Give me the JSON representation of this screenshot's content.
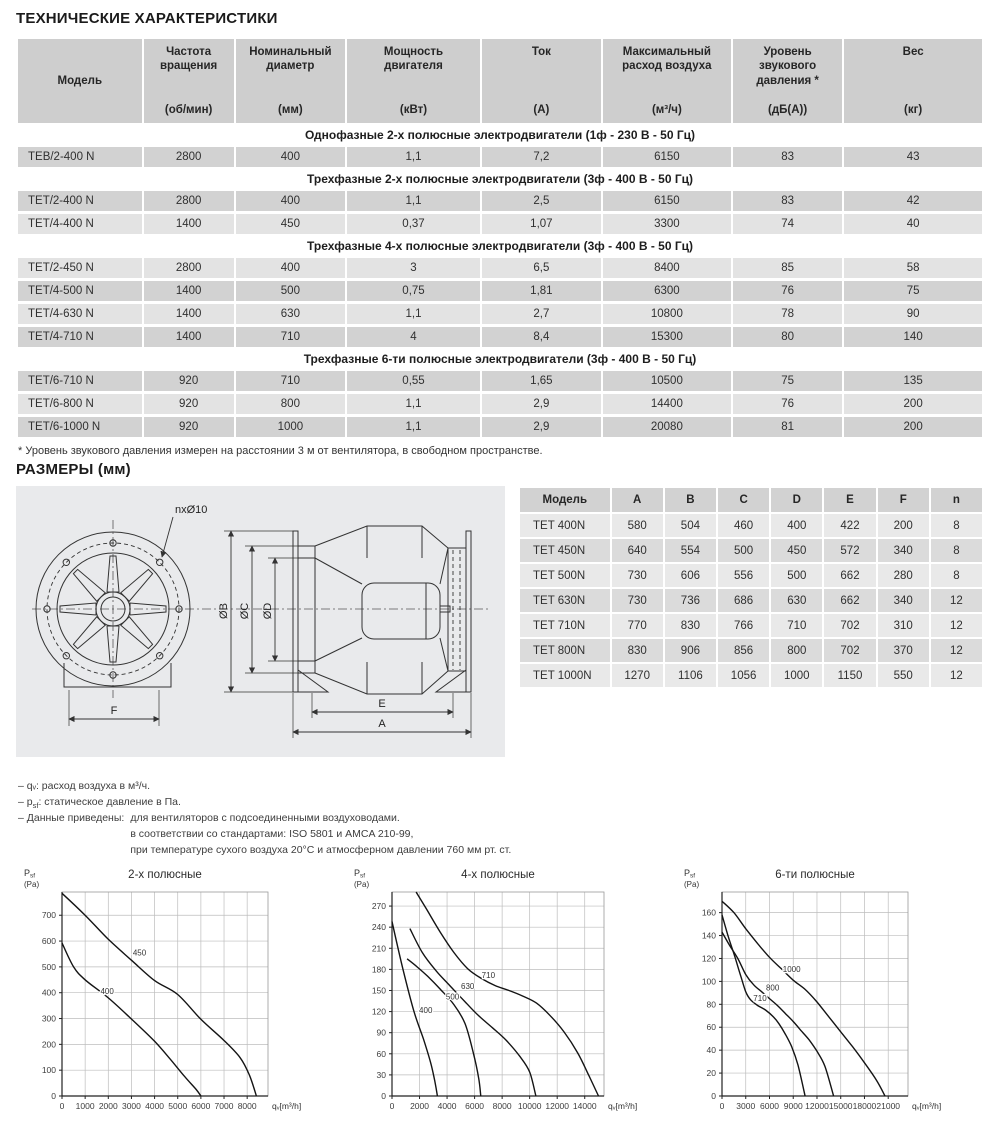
{
  "page": {
    "title": "ТЕХНИЧЕСКИЕ ХАРАКТЕРИСТИКИ",
    "dimensions_title": "РАЗМЕРЫ (мм)"
  },
  "spec_table": {
    "headers": [
      {
        "name": "Модель",
        "unit": ""
      },
      {
        "name": "Частота вращения",
        "unit": "(об/мин)"
      },
      {
        "name": "Номинальный диаметр",
        "unit": "(мм)"
      },
      {
        "name": "Мощность двигателя",
        "unit": "(кВт)"
      },
      {
        "name": "Ток",
        "unit": "(А)"
      },
      {
        "name": "Максимальный расход воздуха",
        "unit": "(м³/ч)"
      },
      {
        "name": "Уровень звукового давления *",
        "unit": "(дБ(А))"
      },
      {
        "name": "Вес",
        "unit": "(кг)"
      }
    ],
    "sections": [
      {
        "title": "Однофазные 2-х полюсные электродвигатели (1ф - 230 В - 50 Гц)",
        "rows": [
          {
            "model": "TEB/2-400 N",
            "values": [
              "2800",
              "400",
              "1,1",
              "7,2",
              "6150",
              "83",
              "43"
            ],
            "shade": "dark"
          }
        ]
      },
      {
        "title": "Трехфазные 2-х полюсные электродвигатели (3ф - 400 В - 50 Гц)",
        "rows": [
          {
            "model": "TET/2-400 N",
            "values": [
              "2800",
              "400",
              "1,1",
              "2,5",
              "6150",
              "83",
              "42"
            ],
            "shade": "dark"
          },
          {
            "model": "TET/4-400 N",
            "values": [
              "1400",
              "450",
              "0,37",
              "1,07",
              "3300",
              "74",
              "40"
            ],
            "shade": "light"
          }
        ]
      },
      {
        "title": "Трехфазные 4-х полюсные электродвигатели (3ф - 400 В - 50 Гц)",
        "rows": [
          {
            "model": "TET/2-450 N",
            "values": [
              "2800",
              "400",
              "3",
              "6,5",
              "8400",
              "85",
              "58"
            ],
            "shade": "light"
          },
          {
            "model": "TET/4-500 N",
            "values": [
              "1400",
              "500",
              "0,75",
              "1,81",
              "6300",
              "76",
              "75"
            ],
            "shade": "dark"
          },
          {
            "model": "TET/4-630 N",
            "values": [
              "1400",
              "630",
              "1,1",
              "2,7",
              "10800",
              "78",
              "90"
            ],
            "shade": "light"
          },
          {
            "model": "TET/4-710 N",
            "values": [
              "1400",
              "710",
              "4",
              "8,4",
              "15300",
              "80",
              "140"
            ],
            "shade": "dark"
          }
        ]
      },
      {
        "title": "Трехфазные 6-ти полюсные электродвигатели (3ф - 400 В - 50 Гц)",
        "rows": [
          {
            "model": "TET/6-710 N",
            "values": [
              "920",
              "710",
              "0,55",
              "1,65",
              "10500",
              "75",
              "135"
            ],
            "shade": "dark"
          },
          {
            "model": "TET/6-800 N",
            "values": [
              "920",
              "800",
              "1,1",
              "2,9",
              "14400",
              "76",
              "200"
            ],
            "shade": "light"
          },
          {
            "model": "TET/6-1000 N",
            "values": [
              "920",
              "1000",
              "1,1",
              "2,9",
              "20080",
              "81",
              "200"
            ],
            "shade": "dark"
          }
        ]
      }
    ],
    "footnote": "* Уровень звукового давления измерен на расстоянии 3 м от вентилятора, в свободном пространстве."
  },
  "dimensions_table": {
    "headers": [
      "Модель",
      "A",
      "B",
      "C",
      "D",
      "E",
      "F",
      "n"
    ],
    "rows": [
      [
        "TET 400N",
        "580",
        "504",
        "460",
        "400",
        "422",
        "200",
        "8"
      ],
      [
        "TET 450N",
        "640",
        "554",
        "500",
        "450",
        "572",
        "340",
        "8"
      ],
      [
        "TET 500N",
        "730",
        "606",
        "556",
        "500",
        "662",
        "280",
        "8"
      ],
      [
        "TET 630N",
        "730",
        "736",
        "686",
        "630",
        "662",
        "340",
        "12"
      ],
      [
        "TET 710N",
        "770",
        "830",
        "766",
        "710",
        "702",
        "310",
        "12"
      ],
      [
        "TET 800N",
        "830",
        "906",
        "856",
        "800",
        "702",
        "370",
        "12"
      ],
      [
        "TET 1000N",
        "1270",
        "1106",
        "1056",
        "1000",
        "1150",
        "550",
        "12"
      ]
    ]
  },
  "drawing": {
    "labels": {
      "holes": "nxØ10",
      "dia_b": "ØB",
      "dia_c": "ØC",
      "dia_d": "ØD",
      "dim_e": "E",
      "dim_a": "A",
      "dim_f": "F"
    }
  },
  "notes": {
    "qv_line": "– qᵥ: расход воздуха в м³/ч.",
    "psf_prefix": "– p",
    "psf_sub": "sf",
    "psf_rest": ": статическое давление в Па.",
    "data_term": "– Данные приведены:",
    "data_lines": [
      "для вентиляторов с подсоединенными воздуховодами.",
      "в соответствии со стандартами: ISO 5801 и AMCA 210-99,",
      "при температуре сухого воздуха 20°С и атмосферном давлении 760 мм рт. ст."
    ]
  },
  "chart_data": [
    {
      "type": "line",
      "title": "2-х полюсные",
      "xlabel": "qᵥ[m³/h]",
      "ylabel": {
        "main": "P",
        "sub": "sf",
        "unit": "(Pa)"
      },
      "xlim": [
        0,
        8900
      ],
      "ylim": [
        0,
        790
      ],
      "xticks": [
        0,
        1000,
        2000,
        3000,
        4000,
        5000,
        6000,
        7000,
        8000
      ],
      "yticks": [
        0,
        100,
        200,
        300,
        400,
        500,
        600,
        700
      ],
      "grid": true,
      "series": [
        {
          "name": "450",
          "label_pos": [
            3350,
            545
          ],
          "points": [
            [
              0,
              785
            ],
            [
              1000,
              700
            ],
            [
              2000,
              607
            ],
            [
              3000,
              526
            ],
            [
              4000,
              447
            ],
            [
              5000,
              393
            ],
            [
              6000,
              297
            ],
            [
              7000,
              215
            ],
            [
              7700,
              148
            ],
            [
              8100,
              80
            ],
            [
              8400,
              0
            ]
          ]
        },
        {
          "name": "400",
          "label_pos": [
            1950,
            395
          ],
          "points": [
            [
              0,
              593
            ],
            [
              500,
              500
            ],
            [
              1000,
              450
            ],
            [
              2000,
              380
            ],
            [
              3000,
              298
            ],
            [
              4000,
              212
            ],
            [
              4700,
              140
            ],
            [
              5300,
              75
            ],
            [
              5800,
              25
            ],
            [
              6000,
              0
            ]
          ]
        }
      ]
    },
    {
      "type": "line",
      "title": "4-х полюсные",
      "xlabel": "qᵥ[m³/h]",
      "ylabel": {
        "main": "P",
        "sub": "sf",
        "unit": "(Pa)"
      },
      "xlim": [
        0,
        15400
      ],
      "ylim": [
        0,
        290
      ],
      "xticks": [
        0,
        2000,
        4000,
        6000,
        8000,
        10000,
        12000,
        14000
      ],
      "yticks": [
        0,
        30,
        60,
        90,
        120,
        150,
        180,
        210,
        240,
        270
      ],
      "grid": true,
      "series": [
        {
          "name": "400",
          "label_pos": [
            2450,
            118
          ],
          "points": [
            [
              0,
              248
            ],
            [
              800,
              180
            ],
            [
              1600,
              120
            ],
            [
              2300,
              80
            ],
            [
              2800,
              48
            ],
            [
              3100,
              22
            ],
            [
              3300,
              0
            ]
          ]
        },
        {
          "name": "500",
          "label_pos": [
            4400,
            137
          ],
          "points": [
            [
              1100,
              195
            ],
            [
              1800,
              184
            ],
            [
              2600,
              170
            ],
            [
              3500,
              152
            ],
            [
              4500,
              130
            ],
            [
              5300,
              103
            ],
            [
              5900,
              62
            ],
            [
              6300,
              25
            ],
            [
              6450,
              0
            ]
          ]
        },
        {
          "name": "630",
          "label_pos": [
            5500,
            152
          ],
          "points": [
            [
              1300,
              238
            ],
            [
              2200,
              204
            ],
            [
              3200,
              178
            ],
            [
              4200,
              157
            ],
            [
              5300,
              134
            ],
            [
              6300,
              114
            ],
            [
              7300,
              97
            ],
            [
              8300,
              79
            ],
            [
              9300,
              56
            ],
            [
              10000,
              34
            ],
            [
              10450,
              0
            ]
          ]
        },
        {
          "name": "710",
          "label_pos": [
            7000,
            168
          ],
          "points": [
            [
              1750,
              290
            ],
            [
              2500,
              266
            ],
            [
              3500,
              233
            ],
            [
              4500,
              204
            ],
            [
              5500,
              181
            ],
            [
              6500,
              167
            ],
            [
              7500,
              157
            ],
            [
              8500,
              150
            ],
            [
              9500,
              142
            ],
            [
              10500,
              132
            ],
            [
              11500,
              114
            ],
            [
              12500,
              91
            ],
            [
              13500,
              61
            ],
            [
              14300,
              29
            ],
            [
              15000,
              0
            ]
          ]
        }
      ]
    },
    {
      "type": "line",
      "title": "6-ти полюсные",
      "xlabel": "qᵥ[m³/h]",
      "ylabel": {
        "main": "P",
        "sub": "sf",
        "unit": "(Pa)"
      },
      "xlim": [
        0,
        23500
      ],
      "ylim": [
        0,
        178
      ],
      "xticks": [
        0,
        3000,
        6000,
        9000,
        12000,
        15000,
        18000,
        21000
      ],
      "yticks": [
        0,
        20,
        40,
        60,
        80,
        100,
        120,
        140,
        160
      ],
      "grid": true,
      "series": [
        {
          "name": "1000",
          "label_pos": [
            8800,
            108
          ],
          "points": [
            [
              0,
              170
            ],
            [
              1500,
              160
            ],
            [
              3000,
              146
            ],
            [
              4500,
              133
            ],
            [
              6000,
              121
            ],
            [
              7500,
              111
            ],
            [
              9000,
              101
            ],
            [
              10500,
              93
            ],
            [
              12000,
              82
            ],
            [
              13500,
              69
            ],
            [
              15000,
              56
            ],
            [
              16500,
              43
            ],
            [
              18000,
              29
            ],
            [
              19500,
              14
            ],
            [
              20600,
              0
            ]
          ]
        },
        {
          "name": "800",
          "label_pos": [
            6400,
            92
          ],
          "points": [
            [
              0,
              143
            ],
            [
              1000,
              131
            ],
            [
              2000,
              120
            ],
            [
              3000,
              106
            ],
            [
              4000,
              97
            ],
            [
              5000,
              91
            ],
            [
              6000,
              85
            ],
            [
              7000,
              79
            ],
            [
              8000,
              72
            ],
            [
              9000,
              65
            ],
            [
              10000,
              57
            ],
            [
              11000,
              49
            ],
            [
              12000,
              39
            ],
            [
              13000,
              26
            ],
            [
              14100,
              0
            ]
          ]
        },
        {
          "name": "710",
          "label_pos": [
            4800,
            83
          ],
          "points": [
            [
              0,
              158
            ],
            [
              800,
              139
            ],
            [
              1600,
              122
            ],
            [
              2400,
              104
            ],
            [
              3000,
              91
            ],
            [
              3600,
              84
            ],
            [
              4500,
              79
            ],
            [
              5500,
              75
            ],
            [
              6500,
              69
            ],
            [
              7200,
              63
            ],
            [
              8000,
              54
            ],
            [
              8800,
              43
            ],
            [
              9600,
              27
            ],
            [
              10500,
              0
            ]
          ]
        }
      ]
    }
  ]
}
